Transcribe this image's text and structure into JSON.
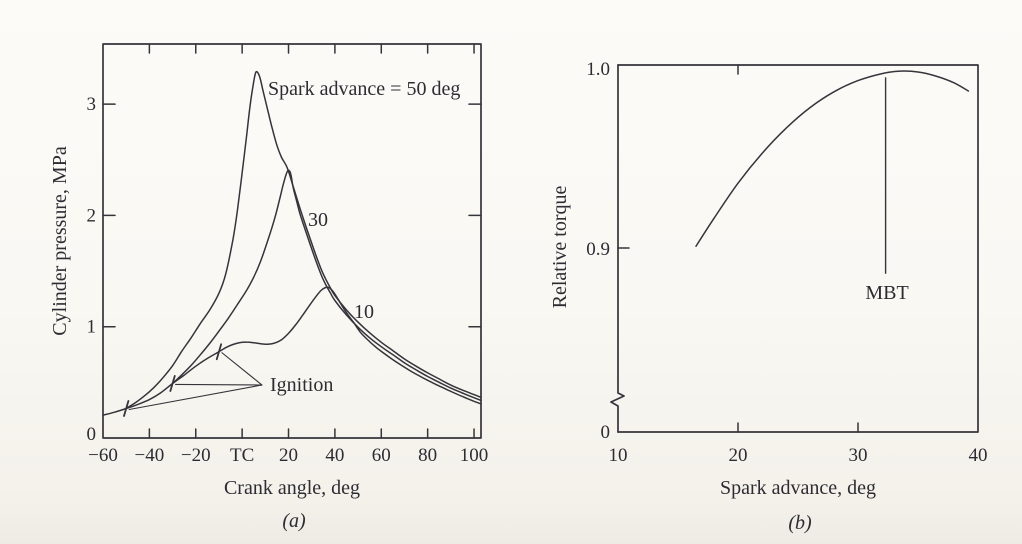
{
  "figure": {
    "description": "Two-panel engine spark-timing figure",
    "ink_color": "#34343b",
    "paper_color": "#faf8f3"
  },
  "chart_data": [
    {
      "type": "line",
      "panel": "a",
      "caption": "(a)",
      "xlabel": "Crank angle, deg",
      "ylabel": "Cylinder pressure, MPa",
      "xlim": [
        -60,
        103
      ],
      "ylim": [
        0,
        3.54
      ],
      "grid": false,
      "x_ticks": [
        {
          "v": -60,
          "label": "−60"
        },
        {
          "v": -40,
          "label": "−40"
        },
        {
          "v": -20,
          "label": "−20"
        },
        {
          "v": 0,
          "label": "TC"
        },
        {
          "v": 20,
          "label": "20"
        },
        {
          "v": 40,
          "label": "40"
        },
        {
          "v": 60,
          "label": "60"
        },
        {
          "v": 80,
          "label": "80"
        },
        {
          "v": 100,
          "label": "100"
        }
      ],
      "y_ticks": [
        {
          "v": 0,
          "label": "0"
        },
        {
          "v": 1,
          "label": "1"
        },
        {
          "v": 2,
          "label": "2"
        },
        {
          "v": 3,
          "label": "3"
        }
      ],
      "series": [
        {
          "name": "motoring-baseline",
          "points": [
            [
              -60,
              0.205
            ],
            [
              -55,
              0.232
            ],
            [
              -50,
              0.265
            ],
            [
              -45,
              0.302
            ],
            [
              -40,
              0.345
            ],
            [
              -35,
              0.408
            ],
            [
              -30,
              0.49
            ],
            [
              -25,
              0.565
            ],
            [
              -20,
              0.645
            ],
            [
              -15,
              0.715
            ],
            [
              -10,
              0.775
            ]
          ]
        },
        {
          "name": "spark-advance-50",
          "points": [
            [
              -50,
              0.265
            ],
            [
              -46,
              0.318
            ],
            [
              -42,
              0.38
            ],
            [
              -38,
              0.455
            ],
            [
              -34,
              0.545
            ],
            [
              -30,
              0.65
            ],
            [
              -26,
              0.78
            ],
            [
              -22,
              0.9
            ],
            [
              -18,
              1.03
            ],
            [
              -14,
              1.15
            ],
            [
              -10,
              1.3
            ],
            [
              -7,
              1.48
            ],
            [
              -4,
              1.78
            ],
            [
              -2,
              2.05
            ],
            [
              0,
              2.38
            ],
            [
              2,
              2.73
            ],
            [
              3.5,
              3.0
            ],
            [
              5,
              3.2
            ],
            [
              6,
              3.29
            ],
            [
              7.5,
              3.25
            ],
            [
              9,
              3.12
            ],
            [
              11,
              2.95
            ],
            [
              13,
              2.78
            ],
            [
              15,
              2.63
            ],
            [
              17,
              2.52
            ],
            [
              19.4,
              2.43
            ],
            [
              22,
              2.26
            ],
            [
              25,
              2.06
            ],
            [
              28,
              1.87
            ],
            [
              31,
              1.69
            ],
            [
              34,
              1.52
            ],
            [
              36,
              1.43
            ],
            [
              38,
              1.35
            ],
            [
              40,
              1.28
            ],
            [
              45,
              1.15
            ],
            [
              50,
              1.04
            ],
            [
              55,
              0.945
            ],
            [
              60,
              0.86
            ],
            [
              65,
              0.785
            ],
            [
              70,
              0.71
            ],
            [
              75,
              0.645
            ],
            [
              80,
              0.585
            ],
            [
              85,
              0.53
            ],
            [
              90,
              0.475
            ],
            [
              95,
              0.43
            ],
            [
              100,
              0.39
            ],
            [
              103,
              0.365
            ]
          ]
        },
        {
          "name": "spark-advance-30",
          "points": [
            [
              -30,
              0.49
            ],
            [
              -26,
              0.568
            ],
            [
              -22,
              0.652
            ],
            [
              -18,
              0.748
            ],
            [
              -14,
              0.85
            ],
            [
              -10,
              0.96
            ],
            [
              -6,
              1.075
            ],
            [
              -2,
              1.2
            ],
            [
              2,
              1.33
            ],
            [
              5,
              1.445
            ],
            [
              8,
              1.59
            ],
            [
              11,
              1.77
            ],
            [
              14,
              1.97
            ],
            [
              16,
              2.13
            ],
            [
              17.5,
              2.26
            ],
            [
              19,
              2.37
            ],
            [
              20,
              2.405
            ],
            [
              21,
              2.37
            ],
            [
              22,
              2.25
            ],
            [
              23.5,
              2.13
            ],
            [
              25,
              2.01
            ],
            [
              28,
              1.82
            ],
            [
              31,
              1.64
            ],
            [
              34,
              1.47
            ],
            [
              36,
              1.38
            ],
            [
              38,
              1.305
            ],
            [
              40,
              1.235
            ],
            [
              45,
              1.105
            ],
            [
              50,
              0.995
            ],
            [
              55,
              0.9
            ],
            [
              60,
              0.82
            ],
            [
              65,
              0.748
            ],
            [
              70,
              0.675
            ],
            [
              75,
              0.612
            ],
            [
              80,
              0.553
            ],
            [
              85,
              0.5
            ],
            [
              90,
              0.448
            ],
            [
              95,
              0.404
            ],
            [
              100,
              0.362
            ],
            [
              103,
              0.338
            ]
          ]
        },
        {
          "name": "spark-advance-10",
          "points": [
            [
              -10,
              0.775
            ],
            [
              -7,
              0.812
            ],
            [
              -4,
              0.84
            ],
            [
              -1,
              0.857
            ],
            [
              2,
              0.862
            ],
            [
              5,
              0.856
            ],
            [
              8,
              0.847
            ],
            [
              11,
              0.843
            ],
            [
              14,
              0.853
            ],
            [
              17,
              0.883
            ],
            [
              20,
              0.94
            ],
            [
              23,
              1.015
            ],
            [
              26,
              1.1
            ],
            [
              29,
              1.19
            ],
            [
              32,
              1.275
            ],
            [
              34,
              1.325
            ],
            [
              36,
              1.352
            ],
            [
              37.5,
              1.35
            ],
            [
              39,
              1.322
            ],
            [
              41,
              1.26
            ],
            [
              43,
              1.19
            ],
            [
              45,
              1.125
            ],
            [
              48,
              1.04
            ],
            [
              51,
              0.95
            ],
            [
              54,
              0.885
            ],
            [
              57,
              0.828
            ],
            [
              60,
              0.778
            ],
            [
              64,
              0.718
            ],
            [
              68,
              0.662
            ],
            [
              72,
              0.61
            ],
            [
              76,
              0.562
            ],
            [
              80,
              0.518
            ],
            [
              84,
              0.477
            ],
            [
              88,
              0.438
            ],
            [
              92,
              0.4
            ],
            [
              96,
              0.364
            ],
            [
              100,
              0.33
            ],
            [
              103,
              0.306
            ]
          ]
        }
      ],
      "ignition_points": [
        {
          "x": -50,
          "y": 0.265
        },
        {
          "x": -30,
          "y": 0.49
        },
        {
          "x": -10,
          "y": 0.775
        }
      ],
      "annotations": [
        {
          "id": "spark50",
          "text": "Spark advance = 50 deg",
          "x": 11,
          "y": 3.15,
          "anchor": "start"
        },
        {
          "id": "label30",
          "text": "30",
          "x": 32.7,
          "y": 1.976,
          "anchor": "middle"
        },
        {
          "id": "label10",
          "text": "10",
          "x": 52.5,
          "y": 1.141,
          "anchor": "middle"
        },
        {
          "id": "ignition",
          "text": "Ignition",
          "x": 12,
          "y": 0.494,
          "anchor": "start"
        }
      ],
      "ignition_pointer_origin": {
        "x": 8.56,
        "y": 0.476
      }
    },
    {
      "type": "line",
      "panel": "b",
      "caption": "(b)",
      "xlabel": "Spark advance, deg",
      "ylabel": "Relative torque",
      "xlim": [
        10,
        40
      ],
      "ylim": [
        0,
        1.0
      ],
      "y_axis_break": true,
      "grid": false,
      "x_ticks": [
        {
          "v": 10,
          "label": "10"
        },
        {
          "v": 20,
          "label": "20"
        },
        {
          "v": 30,
          "label": "30"
        },
        {
          "v": 40,
          "label": "40"
        }
      ],
      "y_ticks": [
        {
          "v": 0,
          "label": "0"
        },
        {
          "v": 0.9,
          "label": "0.9"
        },
        {
          "v": 1.0,
          "label": "1.0"
        }
      ],
      "series": [
        {
          "name": "relative-torque",
          "points": [
            [
              16.5,
              0.901
            ],
            [
              18,
              0.9165
            ],
            [
              20,
              0.936
            ],
            [
              22,
              0.9525
            ],
            [
              24,
              0.9665
            ],
            [
              26,
              0.978
            ],
            [
              28,
              0.9868
            ],
            [
              30,
              0.993
            ],
            [
              32,
              0.9969
            ],
            [
              33.5,
              0.9983
            ],
            [
              35,
              0.9978
            ],
            [
              36.5,
              0.9955
            ],
            [
              38,
              0.9918
            ],
            [
              39.2,
              0.9872
            ]
          ]
        }
      ],
      "annotations": [
        {
          "id": "mbt",
          "text": "MBT",
          "x": 32.3,
          "y": 0.8756,
          "anchor": "middle"
        }
      ],
      "mbt_line": {
        "x": 32.3,
        "y_top": 0.9945,
        "y_bottom": 0.886
      }
    }
  ]
}
